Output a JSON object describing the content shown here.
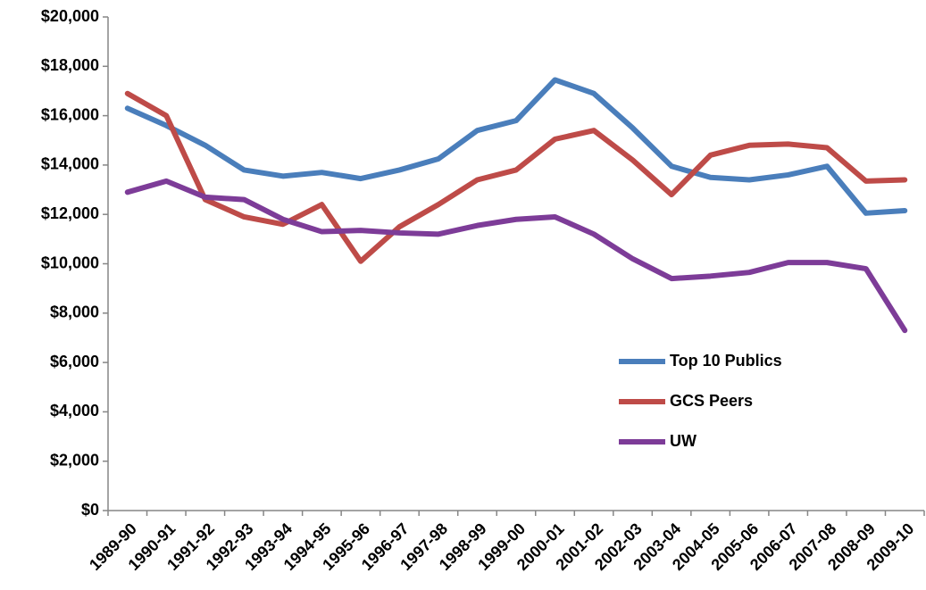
{
  "chart_data": {
    "type": "line",
    "categories": [
      "1989-90",
      "1990-91",
      "1991-92",
      "1992-93",
      "1993-94",
      "1994-95",
      "1995-96",
      "1996-97",
      "1997-98",
      "1998-99",
      "1999-00",
      "2000-01",
      "2001-02",
      "2002-03",
      "2003-04",
      "2004-05",
      "2005-06",
      "2006-07",
      "2007-08",
      "2008-09",
      "2009-10"
    ],
    "series": [
      {
        "name": "Top 10 Publics",
        "color": "#4a7ebb",
        "values": [
          16300,
          15600,
          14800,
          13800,
          13550,
          13700,
          13450,
          13800,
          14250,
          15400,
          15800,
          17450,
          16900,
          15500,
          13950,
          13500,
          13400,
          13600,
          13950,
          12050,
          12150
        ]
      },
      {
        "name": "GCS Peers",
        "color": "#be4b48",
        "values": [
          16900,
          16000,
          12600,
          11900,
          11600,
          12400,
          10100,
          11500,
          12400,
          13400,
          13800,
          15050,
          15400,
          14200,
          12800,
          14400,
          14800,
          14850,
          14700,
          13350,
          13400
        ]
      },
      {
        "name": "UW",
        "color": "#7d3c98",
        "values": [
          12900,
          13350,
          12700,
          12600,
          11800,
          11300,
          11350,
          11250,
          11200,
          11550,
          11800,
          11900,
          11200,
          10200,
          9400,
          9500,
          9650,
          10050,
          10050,
          9800,
          7300
        ]
      }
    ],
    "ylim": [
      0,
      20000
    ],
    "yticks": [
      {
        "value": 0,
        "label": "$0"
      },
      {
        "value": 2000,
        "label": "$2,000"
      },
      {
        "value": 4000,
        "label": "$4,000"
      },
      {
        "value": 6000,
        "label": "$6,000"
      },
      {
        "value": 8000,
        "label": "$8,000"
      },
      {
        "value": 10000,
        "label": "$10,000"
      },
      {
        "value": 12000,
        "label": "$12,000"
      },
      {
        "value": 14000,
        "label": "$14,000"
      },
      {
        "value": 16000,
        "label": "$16,000"
      },
      {
        "value": 18000,
        "label": "$18,000"
      },
      {
        "value": 20000,
        "label": "$20,000"
      }
    ],
    "grid": false,
    "legend": "lower right"
  }
}
